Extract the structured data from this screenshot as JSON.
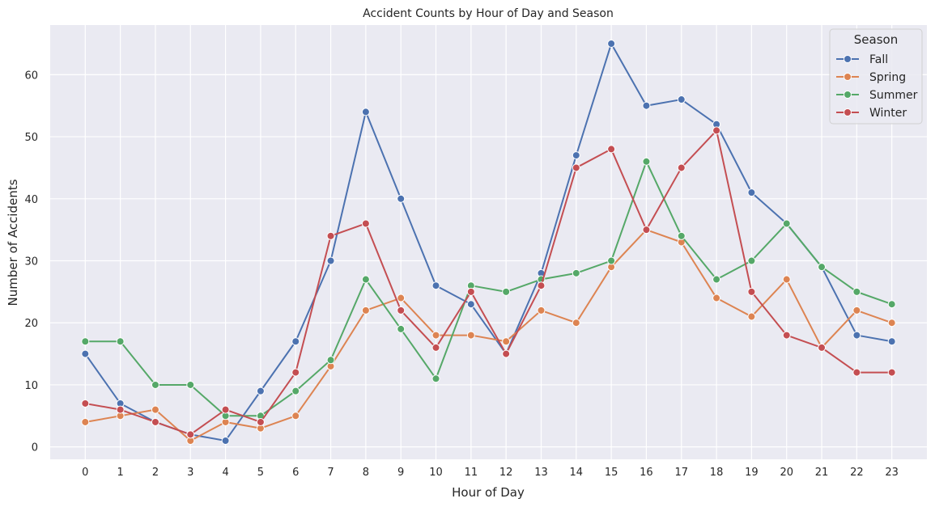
{
  "chart_data": {
    "type": "line",
    "title": "Accident Counts by Hour of Day and Season",
    "xlabel": "Hour of Day",
    "ylabel": "Number of Accidents",
    "x": [
      0,
      1,
      2,
      3,
      4,
      5,
      6,
      7,
      8,
      9,
      10,
      11,
      12,
      13,
      14,
      15,
      16,
      17,
      18,
      19,
      20,
      21,
      22,
      23
    ],
    "xlim": [
      -1,
      24
    ],
    "ylim": [
      -2,
      68
    ],
    "yticks": [
      0,
      10,
      20,
      30,
      40,
      50,
      60
    ],
    "grid": true,
    "legend": {
      "title": "Season",
      "placement": "top-right"
    },
    "series": [
      {
        "name": "Fall",
        "color": "#4c72b0",
        "values": [
          15,
          7,
          4,
          2,
          1,
          9,
          17,
          30,
          54,
          40,
          26,
          23,
          15,
          28,
          47,
          65,
          55,
          56,
          52,
          41,
          36,
          29,
          18,
          17
        ]
      },
      {
        "name": "Spring",
        "color": "#dd8452",
        "values": [
          4,
          5,
          6,
          1,
          4,
          3,
          5,
          13,
          22,
          24,
          18,
          18,
          17,
          22,
          20,
          29,
          35,
          33,
          24,
          21,
          27,
          16,
          22,
          20
        ]
      },
      {
        "name": "Summer",
        "color": "#55a868",
        "values": [
          17,
          17,
          10,
          10,
          5,
          5,
          9,
          14,
          27,
          19,
          11,
          26,
          25,
          27,
          28,
          30,
          46,
          34,
          27,
          30,
          36,
          29,
          25,
          23
        ]
      },
      {
        "name": "Winter",
        "color": "#c44e52",
        "values": [
          7,
          6,
          4,
          2,
          6,
          4,
          12,
          34,
          36,
          22,
          16,
          25,
          15,
          26,
          45,
          48,
          35,
          45,
          51,
          25,
          18,
          16,
          12,
          12
        ]
      }
    ]
  },
  "colors": {
    "background": "#eaeaf2",
    "grid": "#ffffff"
  }
}
